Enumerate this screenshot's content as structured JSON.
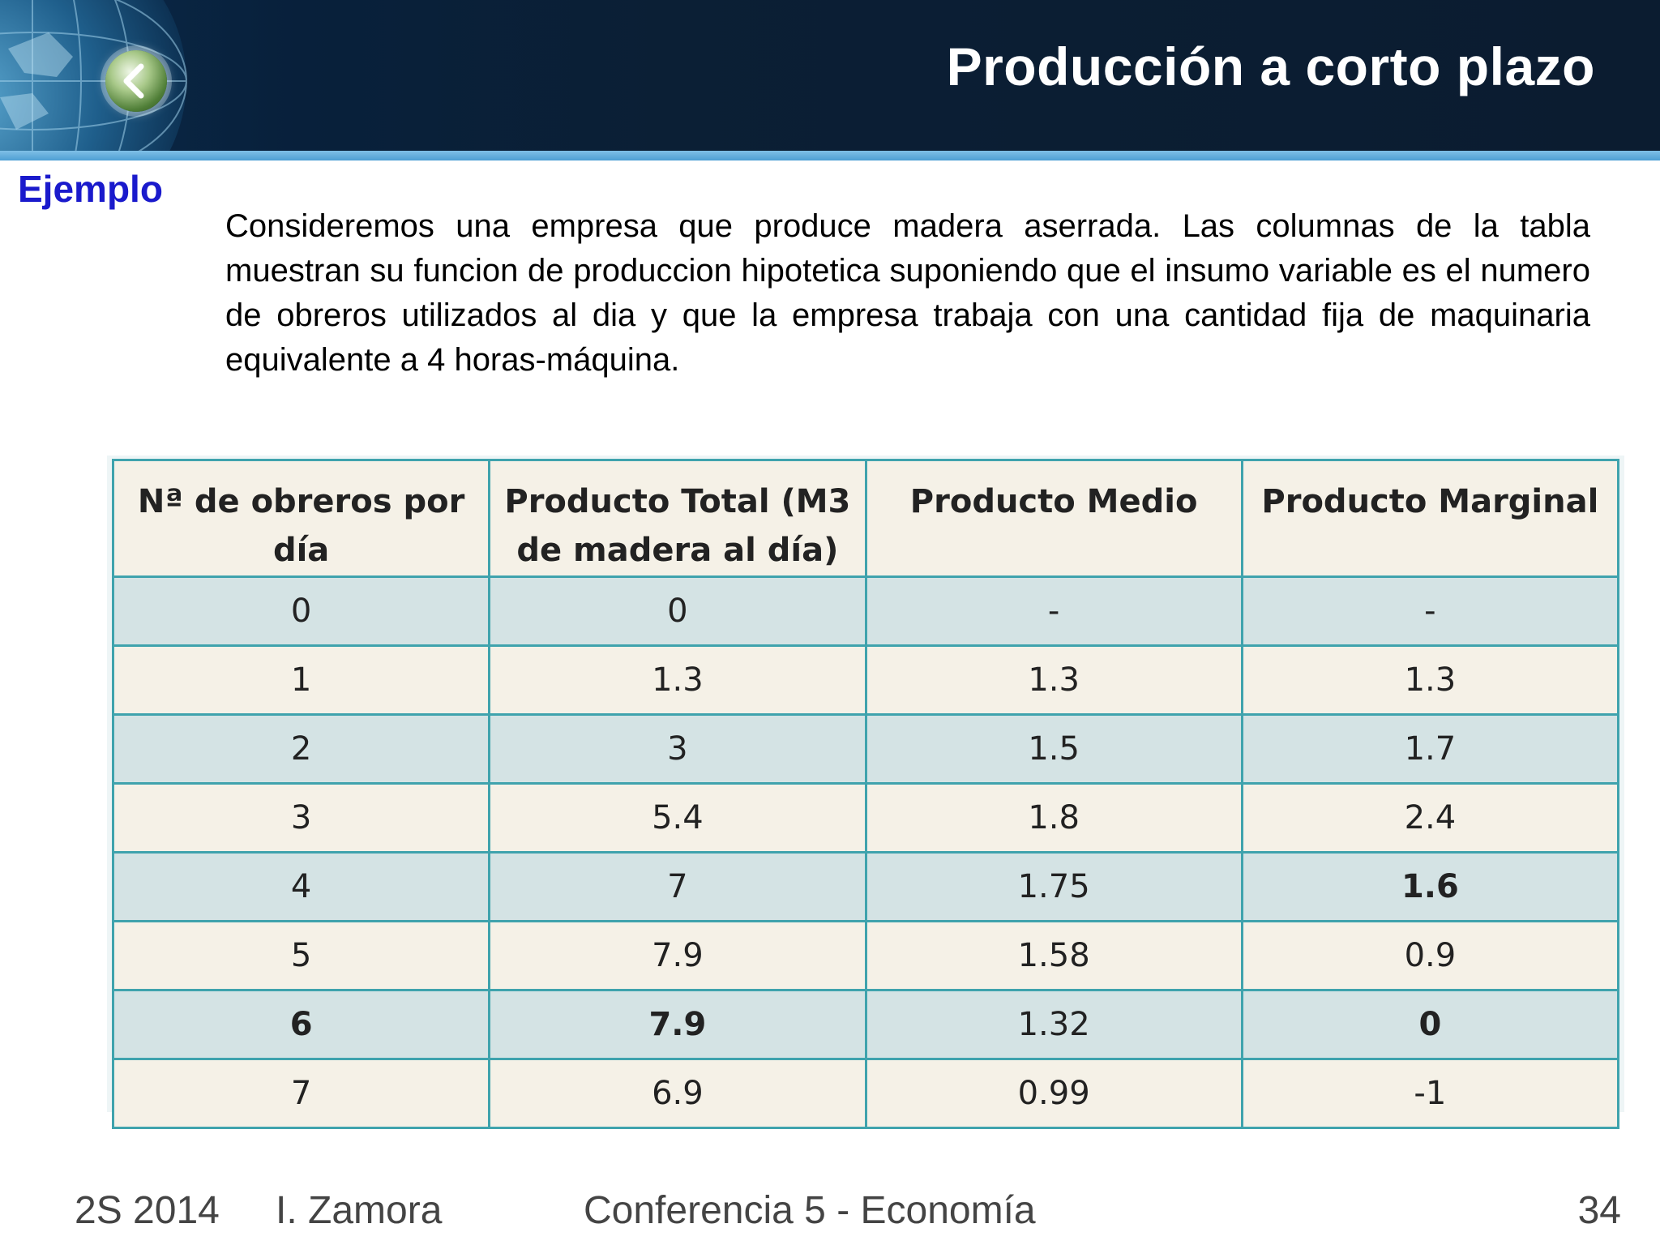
{
  "slide": {
    "title": "Producción a corto plazo",
    "example_label": "Ejemplo",
    "intro": "Consideremos una empresa que produce madera aserrada. Las columnas de la tabla muestran su funcion de produccion hipotetica suponiendo que el insumo variable es el numero de obreros utilizados al dia y que la empresa trabaja con una cantidad fija de maquinaria equivalente a 4 horas-máquina."
  },
  "table": {
    "headers": [
      "Nª de obreros por día",
      "Producto Total (M3 de madera al día)",
      "Producto Medio",
      "Producto Marginal"
    ],
    "rows": [
      [
        "0",
        "0",
        "-",
        "-"
      ],
      [
        "1",
        "1.3",
        "1.3",
        "1.3"
      ],
      [
        "2",
        "3",
        "1.5",
        "1.7"
      ],
      [
        "3",
        "5.4",
        "1.8",
        "2.4"
      ],
      [
        "4",
        "7",
        "1.75",
        "1.6"
      ],
      [
        "5",
        "7.9",
        "1.58",
        "0.9"
      ],
      [
        "6",
        "7.9",
        "1.32",
        "0"
      ],
      [
        "7",
        "6.9",
        "0.99",
        "-1"
      ]
    ]
  },
  "footer": {
    "term": "2S 2014",
    "author": "I. Zamora",
    "course": "Conferencia 5 - Economía",
    "page": "34"
  },
  "icons": {
    "back": "chevron-left-icon",
    "globe": "globe-icon"
  },
  "colors": {
    "header_bg": "#0b1f35",
    "header_stripe": "#4e9fd4",
    "example_label": "#1a1acc",
    "table_border": "#3fa3ad",
    "row_even": "#d4e3e4",
    "row_odd": "#f5f1e7"
  }
}
